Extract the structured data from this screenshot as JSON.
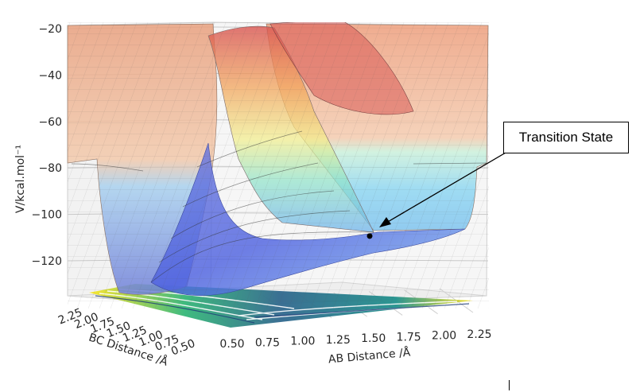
{
  "chart_data": {
    "type": "surface-3d",
    "zlabel": "V/kcal.mol⁻¹",
    "xlabel": "AB Distance /Å",
    "ylabel": "BC Distance /Å",
    "z_ticks": [
      "−20",
      "−40",
      "−60",
      "−80",
      "−100",
      "−120"
    ],
    "z_values": [
      -20,
      -40,
      -60,
      -80,
      -100,
      -120
    ],
    "x_ticks": [
      "0.50",
      "0.75",
      "1.00",
      "1.25",
      "1.50",
      "1.75",
      "2.00",
      "2.25"
    ],
    "x_values": [
      0.5,
      0.75,
      1.0,
      1.25,
      1.5,
      1.75,
      2.0,
      2.25
    ],
    "y_ticks": [
      "2.25",
      "2.00",
      "1.75",
      "1.50",
      "1.25",
      "1.00",
      "0.75",
      "0.50"
    ],
    "y_values": [
      2.25,
      2.0,
      1.75,
      1.5,
      1.25,
      1.0,
      0.75,
      0.5
    ],
    "zlim": [
      -135,
      -20
    ],
    "grid": true,
    "colormap_surface": "jet",
    "colormap_contour": "viridis",
    "transition_state": {
      "z": -109
    },
    "annotation": "Transition State"
  }
}
